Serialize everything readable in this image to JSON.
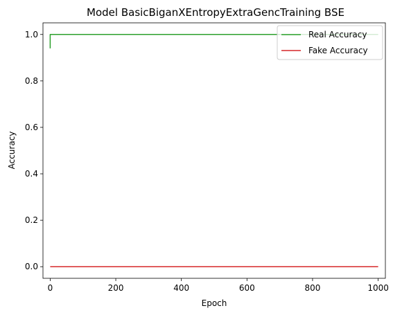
{
  "chart_data": {
    "type": "line",
    "title": "Model BasicBiganXEntropyExtraGencTraining BSE",
    "xlabel": "Epoch",
    "ylabel": "Accuracy",
    "xlim": [
      -22,
      1022
    ],
    "ylim": [
      -0.05,
      1.05
    ],
    "xticks": [
      0,
      200,
      400,
      600,
      800,
      1000
    ],
    "yticks": [
      0.0,
      0.2,
      0.4,
      0.6,
      0.8,
      1.0
    ],
    "xtick_labels": [
      "0",
      "200",
      "400",
      "600",
      "800",
      "1000"
    ],
    "ytick_labels": [
      "0.0",
      "0.2",
      "0.4",
      "0.6",
      "0.8",
      "1.0"
    ],
    "grid": false,
    "legend_position": "top-right",
    "series": [
      {
        "name": "Real Accuracy",
        "color": "#2ca02c",
        "x": [
          0,
          0,
          2,
          1000
        ],
        "y": [
          0.94,
          1.0,
          1.0,
          1.0
        ]
      },
      {
        "name": "Fake Accuracy",
        "color": "#d62728",
        "x": [
          0,
          1000
        ],
        "y": [
          0.0,
          0.0
        ]
      }
    ]
  }
}
